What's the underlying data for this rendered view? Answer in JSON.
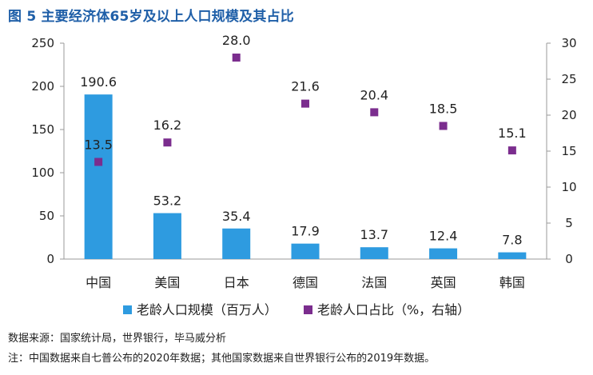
{
  "title": "图 5  主要经济体65岁及以上人口规模及其占比",
  "colors": {
    "bar": "#2e9be0",
    "marker": "#7b2d8e",
    "title": "#1f5fa8"
  },
  "legend": {
    "bar_label": "老龄人口规模（百万人）",
    "marker_label": "老龄人口占比（%，右轴）"
  },
  "footer": {
    "source": "数据来源：国家统计局，世界银行，毕马威分析",
    "note": "注：中国数据来自七普公布的2020年数据；其他国家数据来自世界银行公布的2019年数据。"
  },
  "chart_data": {
    "type": "bar",
    "title": "图 5  主要经济体65岁及以上人口规模及其占比",
    "categories": [
      "中国",
      "美国",
      "日本",
      "德国",
      "法国",
      "英国",
      "韩国"
    ],
    "series": [
      {
        "name": "老龄人口规模（百万人）",
        "type": "bar",
        "axis": "left",
        "values": [
          190.6,
          53.2,
          35.4,
          17.9,
          13.7,
          12.4,
          7.8
        ]
      },
      {
        "name": "老龄人口占比（%，右轴）",
        "type": "scatter",
        "axis": "right",
        "values": [
          13.5,
          16.2,
          28.0,
          21.6,
          20.4,
          18.5,
          15.1
        ]
      }
    ],
    "left_axis": {
      "min": 0,
      "max": 250,
      "ticks": [
        0,
        50,
        100,
        150,
        200,
        250
      ]
    },
    "right_axis": {
      "min": 0,
      "max": 30,
      "ticks": [
        0,
        5,
        10,
        15,
        20,
        25,
        30
      ]
    },
    "legend_position": "bottom",
    "grid": false
  }
}
